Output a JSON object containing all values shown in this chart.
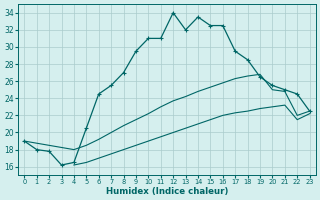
{
  "xlabel": "Humidex (Indice chaleur)",
  "x_main": [
    0,
    1,
    2,
    3,
    4,
    5,
    6,
    7,
    8,
    9,
    10,
    11,
    12,
    13,
    14,
    15,
    16,
    17,
    18,
    19,
    20,
    21,
    22,
    23
  ],
  "y_main": [
    19.0,
    18.0,
    17.8,
    16.2,
    16.5,
    20.5,
    24.5,
    25.5,
    27.0,
    29.5,
    31.0,
    31.0,
    34.0,
    32.0,
    33.5,
    32.5,
    32.5,
    29.5,
    28.5,
    26.5,
    25.5,
    25.0,
    24.5,
    22.5
  ],
  "x_diag1": [
    0,
    4,
    5,
    6,
    7,
    8,
    9,
    10,
    11,
    12,
    13,
    14,
    15,
    16,
    17,
    18,
    19,
    20,
    21,
    22,
    23
  ],
  "y_diag1": [
    19.0,
    18.0,
    18.5,
    19.2,
    20.0,
    20.8,
    21.5,
    22.2,
    23.0,
    23.7,
    24.2,
    24.8,
    25.3,
    25.8,
    26.3,
    26.6,
    26.8,
    25.0,
    24.8,
    22.0,
    22.5
  ],
  "x_diag2": [
    4,
    5,
    6,
    7,
    8,
    9,
    10,
    11,
    12,
    13,
    14,
    15,
    16,
    17,
    18,
    19,
    20,
    21,
    22,
    23
  ],
  "y_diag2": [
    16.2,
    16.5,
    17.0,
    17.5,
    18.0,
    18.5,
    19.0,
    19.5,
    20.0,
    20.5,
    21.0,
    21.5,
    22.0,
    22.3,
    22.5,
    22.8,
    23.0,
    23.2,
    21.5,
    22.2
  ],
  "color": "#006666",
  "bg_color": "#d5efee",
  "grid_color": "#aacccc",
  "ylim": [
    15,
    35
  ],
  "yticks": [
    16,
    18,
    20,
    22,
    24,
    26,
    28,
    30,
    32,
    34
  ],
  "xticks": [
    0,
    1,
    2,
    3,
    4,
    5,
    6,
    7,
    8,
    9,
    10,
    11,
    12,
    13,
    14,
    15,
    16,
    17,
    18,
    19,
    20,
    21,
    22,
    23
  ]
}
